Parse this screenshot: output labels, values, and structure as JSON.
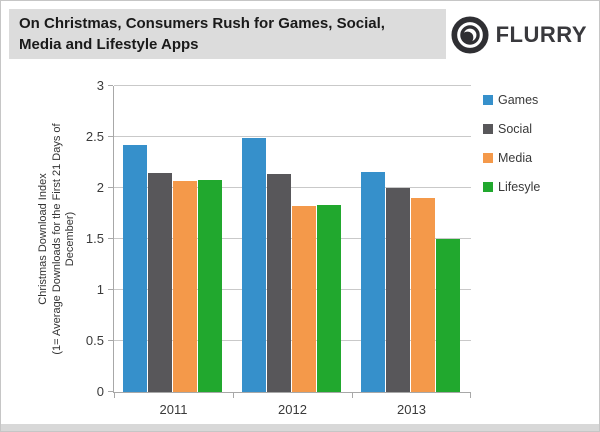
{
  "header": {
    "title_line1": "On Christmas, Consumers Rush for Games, Social,",
    "title_line2": "Media and Lifestyle Apps",
    "logo_text": "FLURRY"
  },
  "chart_data": {
    "type": "bar",
    "categories": [
      "2011",
      "2012",
      "2013"
    ],
    "series": [
      {
        "name": "Games",
        "color": "#3690CB",
        "values": [
          2.42,
          2.49,
          2.16
        ]
      },
      {
        "name": "Social",
        "color": "#58575A",
        "values": [
          2.15,
          2.14,
          2.0
        ]
      },
      {
        "name": "Media",
        "color": "#F4994A",
        "values": [
          2.07,
          1.82,
          1.9
        ]
      },
      {
        "name": "Lifesyle",
        "color": "#21A82E",
        "values": [
          2.08,
          1.83,
          1.5
        ]
      }
    ],
    "y_axis_title_lines": [
      "Christmas Download Index",
      "(1= Average Downloads for the First 21 Days of",
      "December)"
    ],
    "yticks": [
      3,
      2.5,
      2,
      1.5,
      1,
      0.5,
      0
    ],
    "ytick_labels": [
      "3",
      "2.5",
      "2",
      "1.5",
      "1",
      "0.5",
      "0"
    ],
    "ylim": [
      0,
      3
    ],
    "grid": true,
    "legend_position": "right"
  },
  "colors": {
    "title_bg": "#dcdcdc",
    "slide_border": "#c6c6c6",
    "bottom_strip": "#d8d8d8",
    "axis": "#a8a8a8",
    "gridline": "#c9c9c9",
    "logo": "#39393d",
    "text": "#333333"
  }
}
